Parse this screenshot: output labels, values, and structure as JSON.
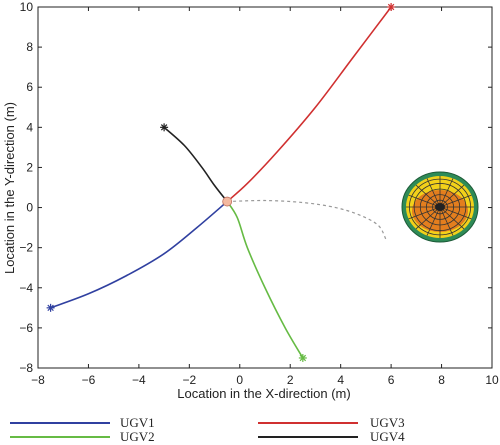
{
  "chart_data": {
    "type": "line",
    "xlabel": "Location in the X-direction (m)",
    "ylabel": "Location in the Y-direction (m)",
    "xlim": [
      -8,
      10
    ],
    "ylim": [
      -8,
      10
    ],
    "xticks": [
      -8,
      -6,
      -4,
      -2,
      0,
      2,
      4,
      6,
      8,
      10
    ],
    "yticks": [
      -8,
      -6,
      -4,
      -2,
      0,
      2,
      4,
      6,
      8,
      10
    ],
    "grid": false,
    "legend_placement": "bottom",
    "center_point": {
      "x": -0.5,
      "y": 0.3,
      "color": "#f4b9a0"
    },
    "series": [
      {
        "name": "UGV1",
        "color": "#3040a0",
        "points": [
          [
            -7.5,
            -5.0
          ],
          [
            -6.0,
            -4.3
          ],
          [
            -4.5,
            -3.4
          ],
          [
            -3.0,
            -2.3
          ],
          [
            -1.7,
            -1.0
          ],
          [
            -0.5,
            0.3
          ]
        ]
      },
      {
        "name": "UGV2",
        "color": "#66bb44",
        "points": [
          [
            2.5,
            -7.5
          ],
          [
            1.8,
            -6.0
          ],
          [
            1.0,
            -4.0
          ],
          [
            0.3,
            -2.0
          ],
          [
            -0.1,
            -0.5
          ],
          [
            -0.5,
            0.3
          ]
        ]
      },
      {
        "name": "UGV3",
        "color": "#d03030",
        "points": [
          [
            6.0,
            10.0
          ],
          [
            4.5,
            7.5
          ],
          [
            3.0,
            5.0
          ],
          [
            1.5,
            2.8
          ],
          [
            0.3,
            1.2
          ],
          [
            -0.5,
            0.3
          ]
        ]
      },
      {
        "name": "UGV4",
        "color": "#222222",
        "points": [
          [
            -3.0,
            4.0
          ],
          [
            -2.2,
            3.1
          ],
          [
            -1.5,
            2.0
          ],
          [
            -1.0,
            1.1
          ],
          [
            -0.5,
            0.3
          ]
        ]
      }
    ],
    "dashed_path": {
      "color": "#999999",
      "points": [
        [
          -0.5,
          0.3
        ],
        [
          1.0,
          0.35
        ],
        [
          2.5,
          0.25
        ],
        [
          3.8,
          0.0
        ],
        [
          4.8,
          -0.4
        ],
        [
          5.5,
          -0.9
        ],
        [
          5.8,
          -1.6
        ]
      ]
    }
  },
  "legend": [
    {
      "name": "UGV1",
      "color": "#3040a0"
    },
    {
      "name": "UGV3",
      "color": "#d03030"
    },
    {
      "name": "UGV2",
      "color": "#66bb44"
    },
    {
      "name": "UGV4",
      "color": "#222222"
    }
  ],
  "radar_graphic": {
    "icon": "target-grid-icon",
    "colors": [
      "#2e8b57",
      "#f2d11a",
      "#e07020"
    ]
  }
}
